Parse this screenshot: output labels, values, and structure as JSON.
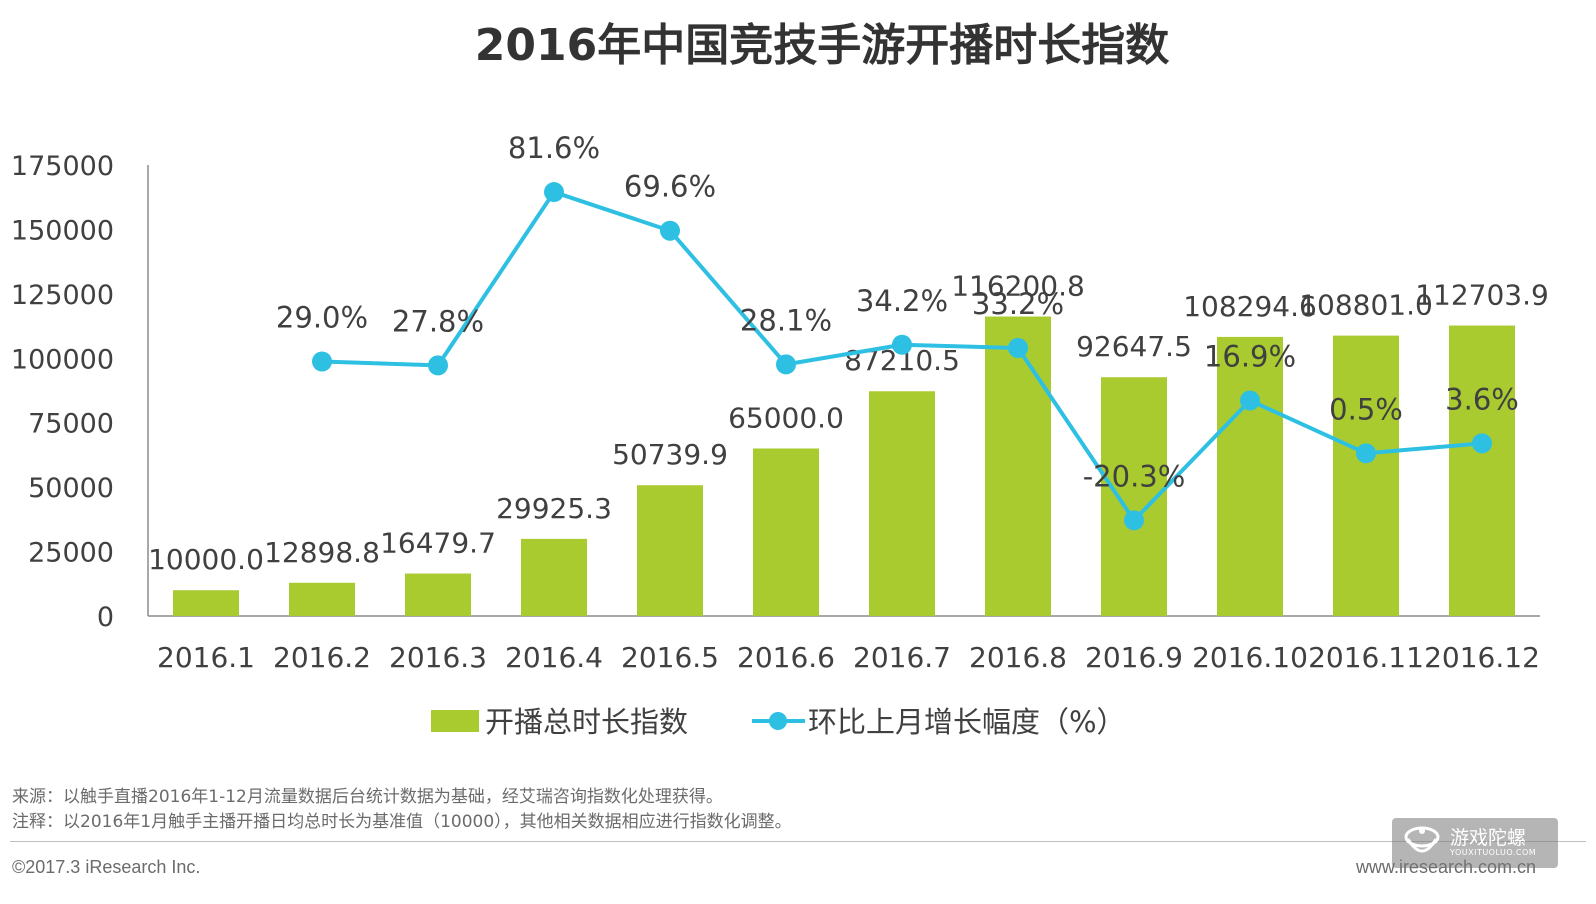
{
  "chart_data": {
    "type": "bar",
    "title": "2016年中国竞技手游开播时长指数",
    "categories": [
      "2016.1",
      "2016.2",
      "2016.3",
      "2016.4",
      "2016.5",
      "2016.6",
      "2016.7",
      "2016.8",
      "2016.9",
      "2016.10",
      "2016.11",
      "2016.12"
    ],
    "series": [
      {
        "name": "开播总时长指数",
        "type": "bar",
        "color": "#a9cb30",
        "values": [
          10000.0,
          12898.8,
          16479.7,
          29925.3,
          50739.9,
          65000.0,
          87210.5,
          116200.8,
          92647.5,
          108294.6,
          108801.0,
          112703.9
        ],
        "labels": [
          "10000.0",
          "12898.8",
          "16479.7",
          "29925.3",
          "50739.9",
          "65000.0",
          "87210.5",
          "116200.8",
          "92647.5",
          "108294.6",
          "108801.0",
          "112703.9"
        ]
      },
      {
        "name": "环比上月增长幅度（%）",
        "type": "line",
        "color": "#2ec0e3",
        "values": [
          null,
          29.0,
          27.8,
          81.6,
          69.6,
          28.1,
          34.2,
          33.2,
          -20.3,
          16.9,
          0.5,
          3.6
        ],
        "labels": [
          "",
          "29.0%",
          "27.8%",
          "81.6%",
          "69.6%",
          "28.1%",
          "34.2%",
          "33.2%",
          "-20.3%",
          "16.9%",
          "0.5%",
          "3.6%"
        ]
      }
    ],
    "yticks": [
      "0",
      "25000",
      "50000",
      "75000",
      "100000",
      "125000",
      "150000",
      "175000"
    ],
    "ylim": [
      0,
      175000
    ],
    "line_ylim": [
      -50,
      90
    ],
    "legend": {
      "position": "bottom",
      "items": [
        "开播总时长指数",
        "环比上月增长幅度（%）"
      ]
    },
    "grid": false
  },
  "notes": {
    "source": "来源：以触手直播2016年1-12月流量数据后台统计数据为基础，经艾瑞咨询指数化处理获得。",
    "note": "注释：以2016年1月触手主播开播日均总时长为基准值（10000），其他相关数据相应进行指数化调整。"
  },
  "footer": {
    "copyright": "©2017.3 iResearch Inc.",
    "website": "www.iresearch.com.cn"
  },
  "watermark": {
    "main": "游戏陀螺",
    "sub": "YOUXITUOLUO.COM"
  }
}
